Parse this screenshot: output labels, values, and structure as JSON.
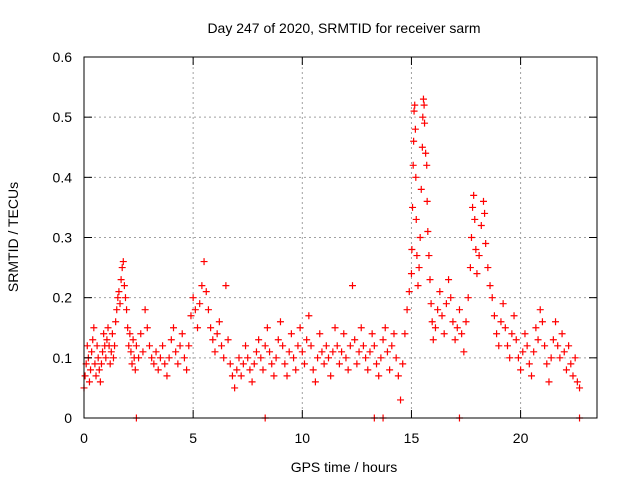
{
  "chart_data": {
    "type": "scatter",
    "title": "Day 247 of 2020, SRMTID for receiver sarm",
    "xlabel": "GPS time / hours",
    "ylabel": "SRMTID / TECUs",
    "xlim": [
      0,
      23.5
    ],
    "ylim": [
      0,
      0.6
    ],
    "xticks": [
      0,
      5,
      10,
      15,
      20
    ],
    "yticks": [
      0,
      0.1,
      0.2,
      0.3,
      0.4,
      0.5,
      0.6
    ],
    "xtick_labels": [
      "0",
      "5",
      "10",
      "15",
      "20"
    ],
    "ytick_labels": [
      "0",
      "0.1",
      "0.2",
      "0.3",
      "0.4",
      "0.5",
      "0.6"
    ],
    "grid": true,
    "marker": "+",
    "color": "#ff0000",
    "series": [
      {
        "name": "SRMTID",
        "points": [
          [
            0.0,
            0.05
          ],
          [
            0.05,
            0.07
          ],
          [
            0.1,
            0.09
          ],
          [
            0.15,
            0.12
          ],
          [
            0.2,
            0.1
          ],
          [
            0.25,
            0.06
          ],
          [
            0.3,
            0.08
          ],
          [
            0.35,
            0.11
          ],
          [
            0.4,
            0.13
          ],
          [
            0.45,
            0.15
          ],
          [
            0.5,
            0.09
          ],
          [
            0.55,
            0.07
          ],
          [
            0.6,
            0.12
          ],
          [
            0.65,
            0.1
          ],
          [
            0.7,
            0.08
          ],
          [
            0.75,
            0.06
          ],
          [
            0.8,
            0.09
          ],
          [
            0.85,
            0.11
          ],
          [
            0.9,
            0.14
          ],
          [
            0.95,
            0.12
          ],
          [
            1.0,
            0.1
          ],
          [
            1.05,
            0.13
          ],
          [
            1.1,
            0.15
          ],
          [
            1.15,
            0.12
          ],
          [
            1.2,
            0.09
          ],
          [
            1.25,
            0.11
          ],
          [
            1.3,
            0.14
          ],
          [
            1.35,
            0.1
          ],
          [
            1.4,
            0.12
          ],
          [
            1.45,
            0.16
          ],
          [
            1.5,
            0.18
          ],
          [
            1.55,
            0.2
          ],
          [
            1.6,
            0.21
          ],
          [
            1.65,
            0.19
          ],
          [
            1.7,
            0.23
          ],
          [
            1.75,
            0.25
          ],
          [
            1.8,
            0.26
          ],
          [
            1.85,
            0.22
          ],
          [
            1.9,
            0.2
          ],
          [
            1.95,
            0.18
          ],
          [
            2.0,
            0.15
          ],
          [
            2.05,
            0.12
          ],
          [
            2.1,
            0.14
          ],
          [
            2.15,
            0.11
          ],
          [
            2.2,
            0.09
          ],
          [
            2.25,
            0.13
          ],
          [
            2.3,
            0.1
          ],
          [
            2.35,
            0.08
          ],
          [
            2.4,
            0.12
          ],
          [
            2.5,
            0.1
          ],
          [
            2.6,
            0.14
          ],
          [
            2.7,
            0.11
          ],
          [
            2.8,
            0.18
          ],
          [
            2.9,
            0.15
          ],
          [
            3.0,
            0.12
          ],
          [
            3.1,
            0.1
          ],
          [
            3.2,
            0.09
          ],
          [
            3.3,
            0.11
          ],
          [
            3.4,
            0.08
          ],
          [
            3.5,
            0.1
          ],
          [
            3.6,
            0.12
          ],
          [
            3.7,
            0.09
          ],
          [
            3.8,
            0.07
          ],
          [
            3.9,
            0.1
          ],
          [
            4.0,
            0.13
          ],
          [
            4.1,
            0.15
          ],
          [
            4.2,
            0.11
          ],
          [
            4.3,
            0.09
          ],
          [
            4.4,
            0.12
          ],
          [
            4.5,
            0.14
          ],
          [
            4.6,
            0.1
          ],
          [
            4.7,
            0.08
          ],
          [
            4.8,
            0.12
          ],
          [
            4.9,
            0.17
          ],
          [
            5.0,
            0.2
          ],
          [
            5.1,
            0.18
          ],
          [
            5.2,
            0.15
          ],
          [
            5.3,
            0.19
          ],
          [
            5.4,
            0.22
          ],
          [
            5.5,
            0.26
          ],
          [
            5.6,
            0.21
          ],
          [
            5.7,
            0.18
          ],
          [
            5.8,
            0.15
          ],
          [
            5.9,
            0.13
          ],
          [
            6.0,
            0.11
          ],
          [
            6.1,
            0.14
          ],
          [
            6.2,
            0.16
          ],
          [
            6.3,
            0.12
          ],
          [
            6.4,
            0.1
          ],
          [
            6.5,
            0.22
          ],
          [
            6.6,
            0.13
          ],
          [
            6.7,
            0.09
          ],
          [
            6.8,
            0.07
          ],
          [
            6.9,
            0.05
          ],
          [
            7.0,
            0.08
          ],
          [
            7.1,
            0.1
          ],
          [
            7.2,
            0.07
          ],
          [
            7.3,
            0.09
          ],
          [
            7.4,
            0.12
          ],
          [
            7.5,
            0.1
          ],
          [
            7.6,
            0.08
          ],
          [
            7.7,
            0.06
          ],
          [
            7.8,
            0.09
          ],
          [
            7.9,
            0.11
          ],
          [
            8.0,
            0.13
          ],
          [
            8.1,
            0.1
          ],
          [
            8.2,
            0.08
          ],
          [
            8.3,
            0.12
          ],
          [
            8.4,
            0.15
          ],
          [
            8.5,
            0.11
          ],
          [
            8.6,
            0.09
          ],
          [
            8.7,
            0.07
          ],
          [
            8.8,
            0.1
          ],
          [
            8.9,
            0.13
          ],
          [
            9.0,
            0.16
          ],
          [
            9.1,
            0.12
          ],
          [
            9.2,
            0.09
          ],
          [
            9.3,
            0.07
          ],
          [
            9.4,
            0.11
          ],
          [
            9.5,
            0.14
          ],
          [
            9.6,
            0.1
          ],
          [
            9.7,
            0.08
          ],
          [
            9.8,
            0.12
          ],
          [
            9.9,
            0.15
          ],
          [
            10.0,
            0.11
          ],
          [
            10.1,
            0.09
          ],
          [
            10.2,
            0.13
          ],
          [
            10.3,
            0.17
          ],
          [
            10.4,
            0.12
          ],
          [
            10.5,
            0.08
          ],
          [
            10.6,
            0.06
          ],
          [
            10.7,
            0.1
          ],
          [
            10.8,
            0.14
          ],
          [
            10.9,
            0.11
          ],
          [
            11.0,
            0.09
          ],
          [
            11.1,
            0.12
          ],
          [
            11.2,
            0.1
          ],
          [
            11.3,
            0.07
          ],
          [
            11.4,
            0.11
          ],
          [
            11.5,
            0.15
          ],
          [
            11.6,
            0.12
          ],
          [
            11.7,
            0.09
          ],
          [
            11.8,
            0.11
          ],
          [
            11.9,
            0.14
          ],
          [
            12.0,
            0.1
          ],
          [
            12.1,
            0.08
          ],
          [
            12.2,
            0.12
          ],
          [
            12.3,
            0.22
          ],
          [
            12.4,
            0.13
          ],
          [
            12.5,
            0.09
          ],
          [
            12.6,
            0.11
          ],
          [
            12.7,
            0.15
          ],
          [
            12.8,
            0.12
          ],
          [
            12.9,
            0.1
          ],
          [
            13.0,
            0.08
          ],
          [
            13.1,
            0.11
          ],
          [
            13.2,
            0.14
          ],
          [
            13.3,
            0.12
          ],
          [
            13.4,
            0.09
          ],
          [
            13.5,
            0.07
          ],
          [
            13.6,
            0.1
          ],
          [
            13.7,
            0.13
          ],
          [
            13.8,
            0.15
          ],
          [
            13.9,
            0.11
          ],
          [
            14.0,
            0.08
          ],
          [
            14.1,
            0.12
          ],
          [
            14.2,
            0.14
          ],
          [
            14.3,
            0.1
          ],
          [
            14.4,
            0.07
          ],
          [
            14.5,
            0.03
          ],
          [
            14.6,
            0.09
          ],
          [
            14.7,
            0.14
          ],
          [
            14.8,
            0.18
          ],
          [
            14.9,
            0.21
          ],
          [
            15.0,
            0.24
          ],
          [
            15.02,
            0.28
          ],
          [
            15.05,
            0.35
          ],
          [
            15.08,
            0.42
          ],
          [
            15.1,
            0.46
          ],
          [
            15.12,
            0.51
          ],
          [
            15.15,
            0.52
          ],
          [
            15.18,
            0.48
          ],
          [
            15.2,
            0.4
          ],
          [
            15.22,
            0.33
          ],
          [
            15.25,
            0.27
          ],
          [
            15.3,
            0.22
          ],
          [
            15.35,
            0.25
          ],
          [
            15.4,
            0.3
          ],
          [
            15.45,
            0.38
          ],
          [
            15.5,
            0.45
          ],
          [
            15.52,
            0.5
          ],
          [
            15.55,
            0.53
          ],
          [
            15.58,
            0.52
          ],
          [
            15.6,
            0.49
          ],
          [
            15.65,
            0.44
          ],
          [
            15.7,
            0.42
          ],
          [
            15.72,
            0.36
          ],
          [
            15.75,
            0.31
          ],
          [
            15.8,
            0.27
          ],
          [
            15.85,
            0.23
          ],
          [
            15.9,
            0.19
          ],
          [
            15.95,
            0.16
          ],
          [
            16.0,
            0.13
          ],
          [
            16.1,
            0.15
          ],
          [
            16.2,
            0.18
          ],
          [
            16.3,
            0.21
          ],
          [
            16.4,
            0.17
          ],
          [
            16.5,
            0.14
          ],
          [
            16.6,
            0.19
          ],
          [
            16.7,
            0.23
          ],
          [
            16.8,
            0.2
          ],
          [
            16.9,
            0.16
          ],
          [
            17.0,
            0.13
          ],
          [
            17.1,
            0.15
          ],
          [
            17.2,
            0.18
          ],
          [
            17.3,
            0.14
          ],
          [
            17.4,
            0.11
          ],
          [
            17.5,
            0.16
          ],
          [
            17.6,
            0.2
          ],
          [
            17.7,
            0.25
          ],
          [
            17.75,
            0.3
          ],
          [
            17.8,
            0.35
          ],
          [
            17.85,
            0.37
          ],
          [
            17.9,
            0.33
          ],
          [
            17.95,
            0.28
          ],
          [
            18.0,
            0.24
          ],
          [
            18.1,
            0.27
          ],
          [
            18.2,
            0.32
          ],
          [
            18.3,
            0.36
          ],
          [
            18.35,
            0.34
          ],
          [
            18.4,
            0.29
          ],
          [
            18.5,
            0.25
          ],
          [
            18.6,
            0.22
          ],
          [
            18.7,
            0.2
          ],
          [
            18.8,
            0.17
          ],
          [
            18.9,
            0.14
          ],
          [
            19.0,
            0.12
          ],
          [
            19.1,
            0.16
          ],
          [
            19.2,
            0.19
          ],
          [
            19.3,
            0.15
          ],
          [
            19.4,
            0.12
          ],
          [
            19.5,
            0.1
          ],
          [
            19.6,
            0.14
          ],
          [
            19.7,
            0.17
          ],
          [
            19.8,
            0.13
          ],
          [
            19.9,
            0.1
          ],
          [
            20.0,
            0.08
          ],
          [
            20.1,
            0.11
          ],
          [
            20.2,
            0.14
          ],
          [
            20.3,
            0.12
          ],
          [
            20.4,
            0.09
          ],
          [
            20.5,
            0.07
          ],
          [
            20.6,
            0.11
          ],
          [
            20.7,
            0.15
          ],
          [
            20.8,
            0.13
          ],
          [
            20.9,
            0.18
          ],
          [
            21.0,
            0.16
          ],
          [
            21.1,
            0.12
          ],
          [
            21.2,
            0.09
          ],
          [
            21.3,
            0.06
          ],
          [
            21.4,
            0.1
          ],
          [
            21.5,
            0.13
          ],
          [
            21.6,
            0.16
          ],
          [
            21.7,
            0.12
          ],
          [
            21.8,
            0.1
          ],
          [
            21.9,
            0.14
          ],
          [
            22.0,
            0.11
          ],
          [
            22.1,
            0.08
          ],
          [
            22.2,
            0.12
          ],
          [
            22.3,
            0.09
          ],
          [
            22.4,
            0.07
          ],
          [
            22.5,
            0.1
          ],
          [
            22.6,
            0.06
          ],
          [
            22.7,
            0.05
          ],
          [
            2.4,
            0.0
          ],
          [
            8.3,
            0.0
          ],
          [
            13.3,
            0.0
          ],
          [
            13.7,
            0.0
          ],
          [
            17.2,
            0.0
          ],
          [
            22.7,
            0.0
          ]
        ]
      }
    ]
  }
}
